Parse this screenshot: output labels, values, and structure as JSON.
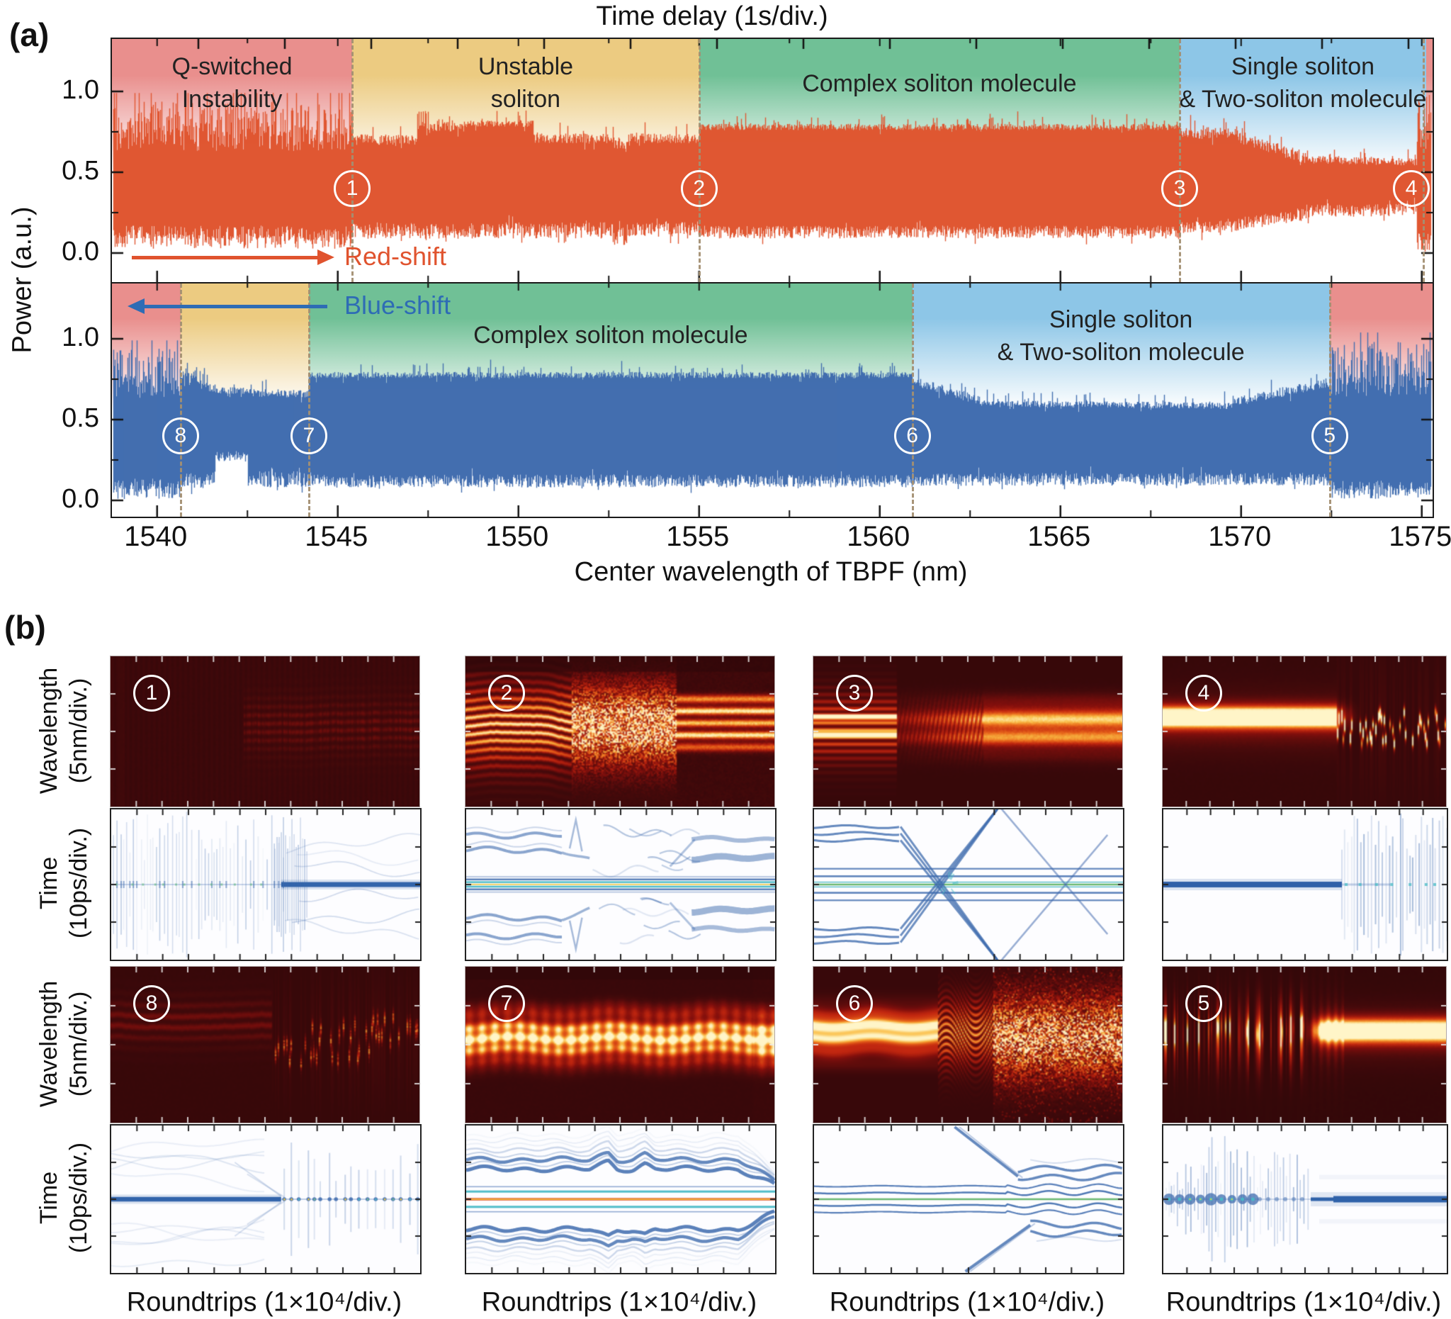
{
  "figure": {
    "panel_a_label": "(a)",
    "panel_b_label": "(b)",
    "background": "#ffffff"
  },
  "colors": {
    "red_trace": "#e0532e",
    "blue_trace": "#3e6bae",
    "cyan": "#49b9c6",
    "green_line": "#63b56a",
    "yellow_line": "#f2c63e",
    "dashed_marker": "#a38f72",
    "spectral_background": "#330708",
    "region_pink": "#e98f8d",
    "region_yellow": "#eccb81",
    "region_green": "#70c096",
    "region_blue": "#8dc6e7",
    "text": "#1c1c1c"
  },
  "panel_a": {
    "top_axis_title": "Time delay (1s/div.)",
    "x_axis_title": "Center wavelength of TBPF (nm)",
    "y_axis_title": "Power (a.u.)",
    "y_tick_labels": [
      "1.0",
      "0.5",
      "0.0"
    ],
    "x_tick_labels": [
      "1540",
      "1545",
      "1550",
      "1555",
      "1560",
      "1565",
      "1570",
      "1575"
    ],
    "red_shift_label": "Red-shift",
    "blue_shift_label": "Blue-shift"
  },
  "panel_b": {
    "wavelength_axis_label": "Wavelength\n(5nm/div.)",
    "time_axis_label": "Time\n(10ps/div.)",
    "x_axis_title": "Roundtrips (1×10⁴/div.)"
  },
  "chart_data": {
    "type": "area",
    "title": "Time delay (1s/div.)",
    "xlabel": "Center wavelength of TBPF (nm)",
    "ylabel": "Power (a.u.)",
    "x_range_nm": [
      1538.75,
      1575.3
    ],
    "y_ticks": [
      0.0,
      0.5,
      1.0
    ],
    "marker_power_level": 0.4,
    "a_top": {
      "series_name": "Red-shift sweep",
      "color": "#e0532e",
      "regions": [
        {
          "lines": [
            "Q-switched",
            "Instability"
          ],
          "from_nm": 1538.75,
          "to_nm": 1545.4,
          "color": "#e98f8d"
        },
        {
          "lines": [
            "Unstable",
            "soliton"
          ],
          "from_nm": 1545.4,
          "to_nm": 1555.0,
          "color": "#eccb81"
        },
        {
          "lines": [
            "Complex soliton molecule"
          ],
          "from_nm": 1555.0,
          "to_nm": 1568.3,
          "color": "#70c096"
        },
        {
          "lines": [
            "Single soliton",
            "& Two-soliton molecule"
          ],
          "from_nm": 1568.3,
          "to_nm": 1575.12,
          "color": "#8dc6e7"
        },
        {
          "lines": [],
          "from_nm": 1575.12,
          "to_nm": 1575.3,
          "color": "#e98f8d"
        }
      ],
      "markers": [
        {
          "n": "1",
          "nm": 1545.4
        },
        {
          "n": "2",
          "nm": 1555.0
        },
        {
          "n": "3",
          "nm": 1568.3
        },
        {
          "n": "4",
          "nm": 1575.05
        }
      ],
      "envelope": [
        {
          "from": 1538.75,
          "to": 1545.4,
          "top": [
            0.7,
            0.7
          ],
          "top_jitter": 0.2,
          "bottom": [
            0.13,
            0.13
          ],
          "bottom_jitter": 0.09,
          "spiky": true
        },
        {
          "from": 1545.4,
          "to": 1547.2,
          "top": [
            0.7,
            0.7
          ],
          "top_jitter": 0.035,
          "bottom": [
            0.14,
            0.14
          ],
          "bottom_jitter": 0.05,
          "spiky": false
        },
        {
          "from": 1547.2,
          "to": 1547.55,
          "top": [
            0.8,
            0.8
          ],
          "top_jitter": 0.08,
          "bottom": [
            0.12,
            0.12
          ],
          "bottom_jitter": 0.05,
          "spiky": false
        },
        {
          "from": 1547.55,
          "to": 1548.4,
          "top": [
            0.78,
            0.78
          ],
          "top_jitter": 0.03,
          "bottom": [
            0.13,
            0.13
          ],
          "bottom_jitter": 0.05,
          "spiky": false
        },
        {
          "from": 1548.4,
          "to": 1550.4,
          "top": [
            0.8,
            0.8
          ],
          "top_jitter": 0.02,
          "bottom": [
            0.14,
            0.14
          ],
          "bottom_jitter": 0.05,
          "spiky": false
        },
        {
          "from": 1550.4,
          "to": 1552.6,
          "top": [
            0.71,
            0.71
          ],
          "top_jitter": 0.03,
          "bottom": [
            0.14,
            0.14
          ],
          "bottom_jitter": 0.05,
          "spiky": false
        },
        {
          "from": 1552.6,
          "to": 1553.0,
          "top": [
            0.67,
            0.67
          ],
          "top_jitter": 0.05,
          "bottom": [
            0.1,
            0.1
          ],
          "bottom_jitter": 0.06,
          "spiky": false
        },
        {
          "from": 1553.0,
          "to": 1555.0,
          "top": [
            0.71,
            0.71
          ],
          "top_jitter": 0.03,
          "bottom": [
            0.15,
            0.15
          ],
          "bottom_jitter": 0.05,
          "spiky": false
        },
        {
          "from": 1555.0,
          "to": 1568.3,
          "top": [
            0.78,
            0.78
          ],
          "top_jitter": 0.02,
          "bottom": [
            0.13,
            0.13
          ],
          "bottom_jitter": 0.04,
          "spiky": false
        },
        {
          "from": 1568.3,
          "to": 1569.9,
          "top": [
            0.74,
            0.74
          ],
          "top_jitter": 0.035,
          "bottom": [
            0.16,
            0.16
          ],
          "bottom_jitter": 0.04,
          "spiky": false
        },
        {
          "from": 1569.9,
          "to": 1571.8,
          "top": [
            0.72,
            0.59
          ],
          "top_jitter": 0.04,
          "bottom": [
            0.18,
            0.24
          ],
          "bottom_jitter": 0.04,
          "spiky": false
        },
        {
          "from": 1571.8,
          "to": 1574.85,
          "top": [
            0.58,
            0.565
          ],
          "top_jitter": 0.025,
          "bottom": [
            0.26,
            0.27
          ],
          "bottom_jitter": 0.04,
          "spiky": false
        },
        {
          "from": 1574.85,
          "to": 1575.3,
          "top": [
            0.72,
            0.72
          ],
          "top_jitter": 0.23,
          "bottom": [
            0.1,
            0.1
          ],
          "bottom_jitter": 0.08,
          "spiky": true
        }
      ]
    },
    "a_bottom": {
      "series_name": "Blue-shift sweep",
      "color": "#3e6bae",
      "regions": [
        {
          "lines": [],
          "from_nm": 1538.75,
          "to_nm": 1540.65,
          "color": "#e98f8d"
        },
        {
          "lines": [],
          "from_nm": 1540.65,
          "to_nm": 1544.2,
          "color": "#eccb81"
        },
        {
          "lines": [
            "Complex soliton molecule"
          ],
          "from_nm": 1544.2,
          "to_nm": 1560.9,
          "color": "#70c096"
        },
        {
          "lines": [
            "Single soliton",
            "& Two-soliton molecule"
          ],
          "from_nm": 1560.9,
          "to_nm": 1572.45,
          "color": "#8dc6e7"
        },
        {
          "lines": [],
          "from_nm": 1572.45,
          "to_nm": 1575.3,
          "color": "#e98f8d"
        }
      ],
      "markers": [
        {
          "n": "8",
          "nm": 1540.65
        },
        {
          "n": "7",
          "nm": 1544.2
        },
        {
          "n": "6",
          "nm": 1560.9
        },
        {
          "n": "5",
          "nm": 1572.45
        }
      ],
      "envelope": [
        {
          "from": 1538.75,
          "to": 1540.65,
          "top": [
            0.7,
            0.7
          ],
          "top_jitter": 0.2,
          "bottom": [
            0.1,
            0.1
          ],
          "bottom_jitter": 0.08,
          "spiky": true
        },
        {
          "from": 1540.65,
          "to": 1541.35,
          "top": [
            0.76,
            0.73
          ],
          "top_jitter": 0.05,
          "bottom": [
            0.12,
            0.12
          ],
          "bottom_jitter": 0.05,
          "spiky": false
        },
        {
          "from": 1541.35,
          "to": 1541.6,
          "top": [
            0.7,
            0.69
          ],
          "top_jitter": 0.03,
          "bottom": [
            0.13,
            0.13
          ],
          "bottom_jitter": 0.05,
          "spiky": false
        },
        {
          "from": 1541.6,
          "to": 1542.5,
          "top": [
            0.68,
            0.68
          ],
          "top_jitter": 0.02,
          "bottom": [
            0.27,
            0.27
          ],
          "bottom_jitter": 0.03,
          "spiky": false
        },
        {
          "from": 1542.5,
          "to": 1544.2,
          "top": [
            0.665,
            0.66
          ],
          "top_jitter": 0.025,
          "bottom": [
            0.13,
            0.13
          ],
          "bottom_jitter": 0.05,
          "spiky": false
        },
        {
          "from": 1544.2,
          "to": 1560.9,
          "top": [
            0.775,
            0.775
          ],
          "top_jitter": 0.02,
          "bottom": [
            0.12,
            0.12
          ],
          "bottom_jitter": 0.04,
          "spiky": false
        },
        {
          "from": 1560.9,
          "to": 1562.8,
          "top": [
            0.74,
            0.615
          ],
          "top_jitter": 0.03,
          "bottom": [
            0.13,
            0.13
          ],
          "bottom_jitter": 0.04,
          "spiky": false
        },
        {
          "from": 1562.8,
          "to": 1569.8,
          "top": [
            0.6,
            0.585
          ],
          "top_jitter": 0.02,
          "bottom": [
            0.13,
            0.13
          ],
          "bottom_jitter": 0.04,
          "spiky": false
        },
        {
          "from": 1569.8,
          "to": 1572.45,
          "top": [
            0.61,
            0.73
          ],
          "top_jitter": 0.03,
          "bottom": [
            0.13,
            0.13
          ],
          "bottom_jitter": 0.04,
          "spiky": false
        },
        {
          "from": 1572.45,
          "to": 1575.3,
          "top": [
            0.72,
            0.72
          ],
          "top_jitter": 0.22,
          "bottom": [
            0.09,
            0.09
          ],
          "bottom_jitter": 0.07,
          "spiky": true
        }
      ]
    },
    "b_panels": {
      "type": "heatmap",
      "x_axis": "Roundtrips (1×10⁴/div.)",
      "spectral_axis": "Wavelength (5nm/div.)",
      "temporal_axis": "Time (10ps/div.)",
      "rows": [
        {
          "cols": [
            {
              "marker": "1",
              "spectral": "faint_band",
              "temporal": "qswitch_to_line"
            },
            {
              "marker": "2",
              "spectral": "bands_chaos",
              "temporal": "molecule_chaos"
            },
            {
              "marker": "3",
              "spectral": "stripes_to_bands",
              "temporal": "x_cross"
            },
            {
              "marker": "4",
              "spectral": "band_breakup",
              "temporal": "line_to_qswitch"
            }
          ]
        },
        {
          "cols": [
            {
              "marker": "8",
              "spectral": "dim_band_breakup",
              "temporal": "line_to_dashes"
            },
            {
              "marker": "7",
              "spectral": "stable_bands",
              "temporal": "multiline_steps"
            },
            {
              "marker": "6",
              "spectral": "bands_to_chaos",
              "temporal": "lines_split_wavy"
            },
            {
              "marker": "5",
              "spectral": "dashes_to_band",
              "temporal": "streaks_to_line"
            }
          ]
        }
      ]
    }
  }
}
